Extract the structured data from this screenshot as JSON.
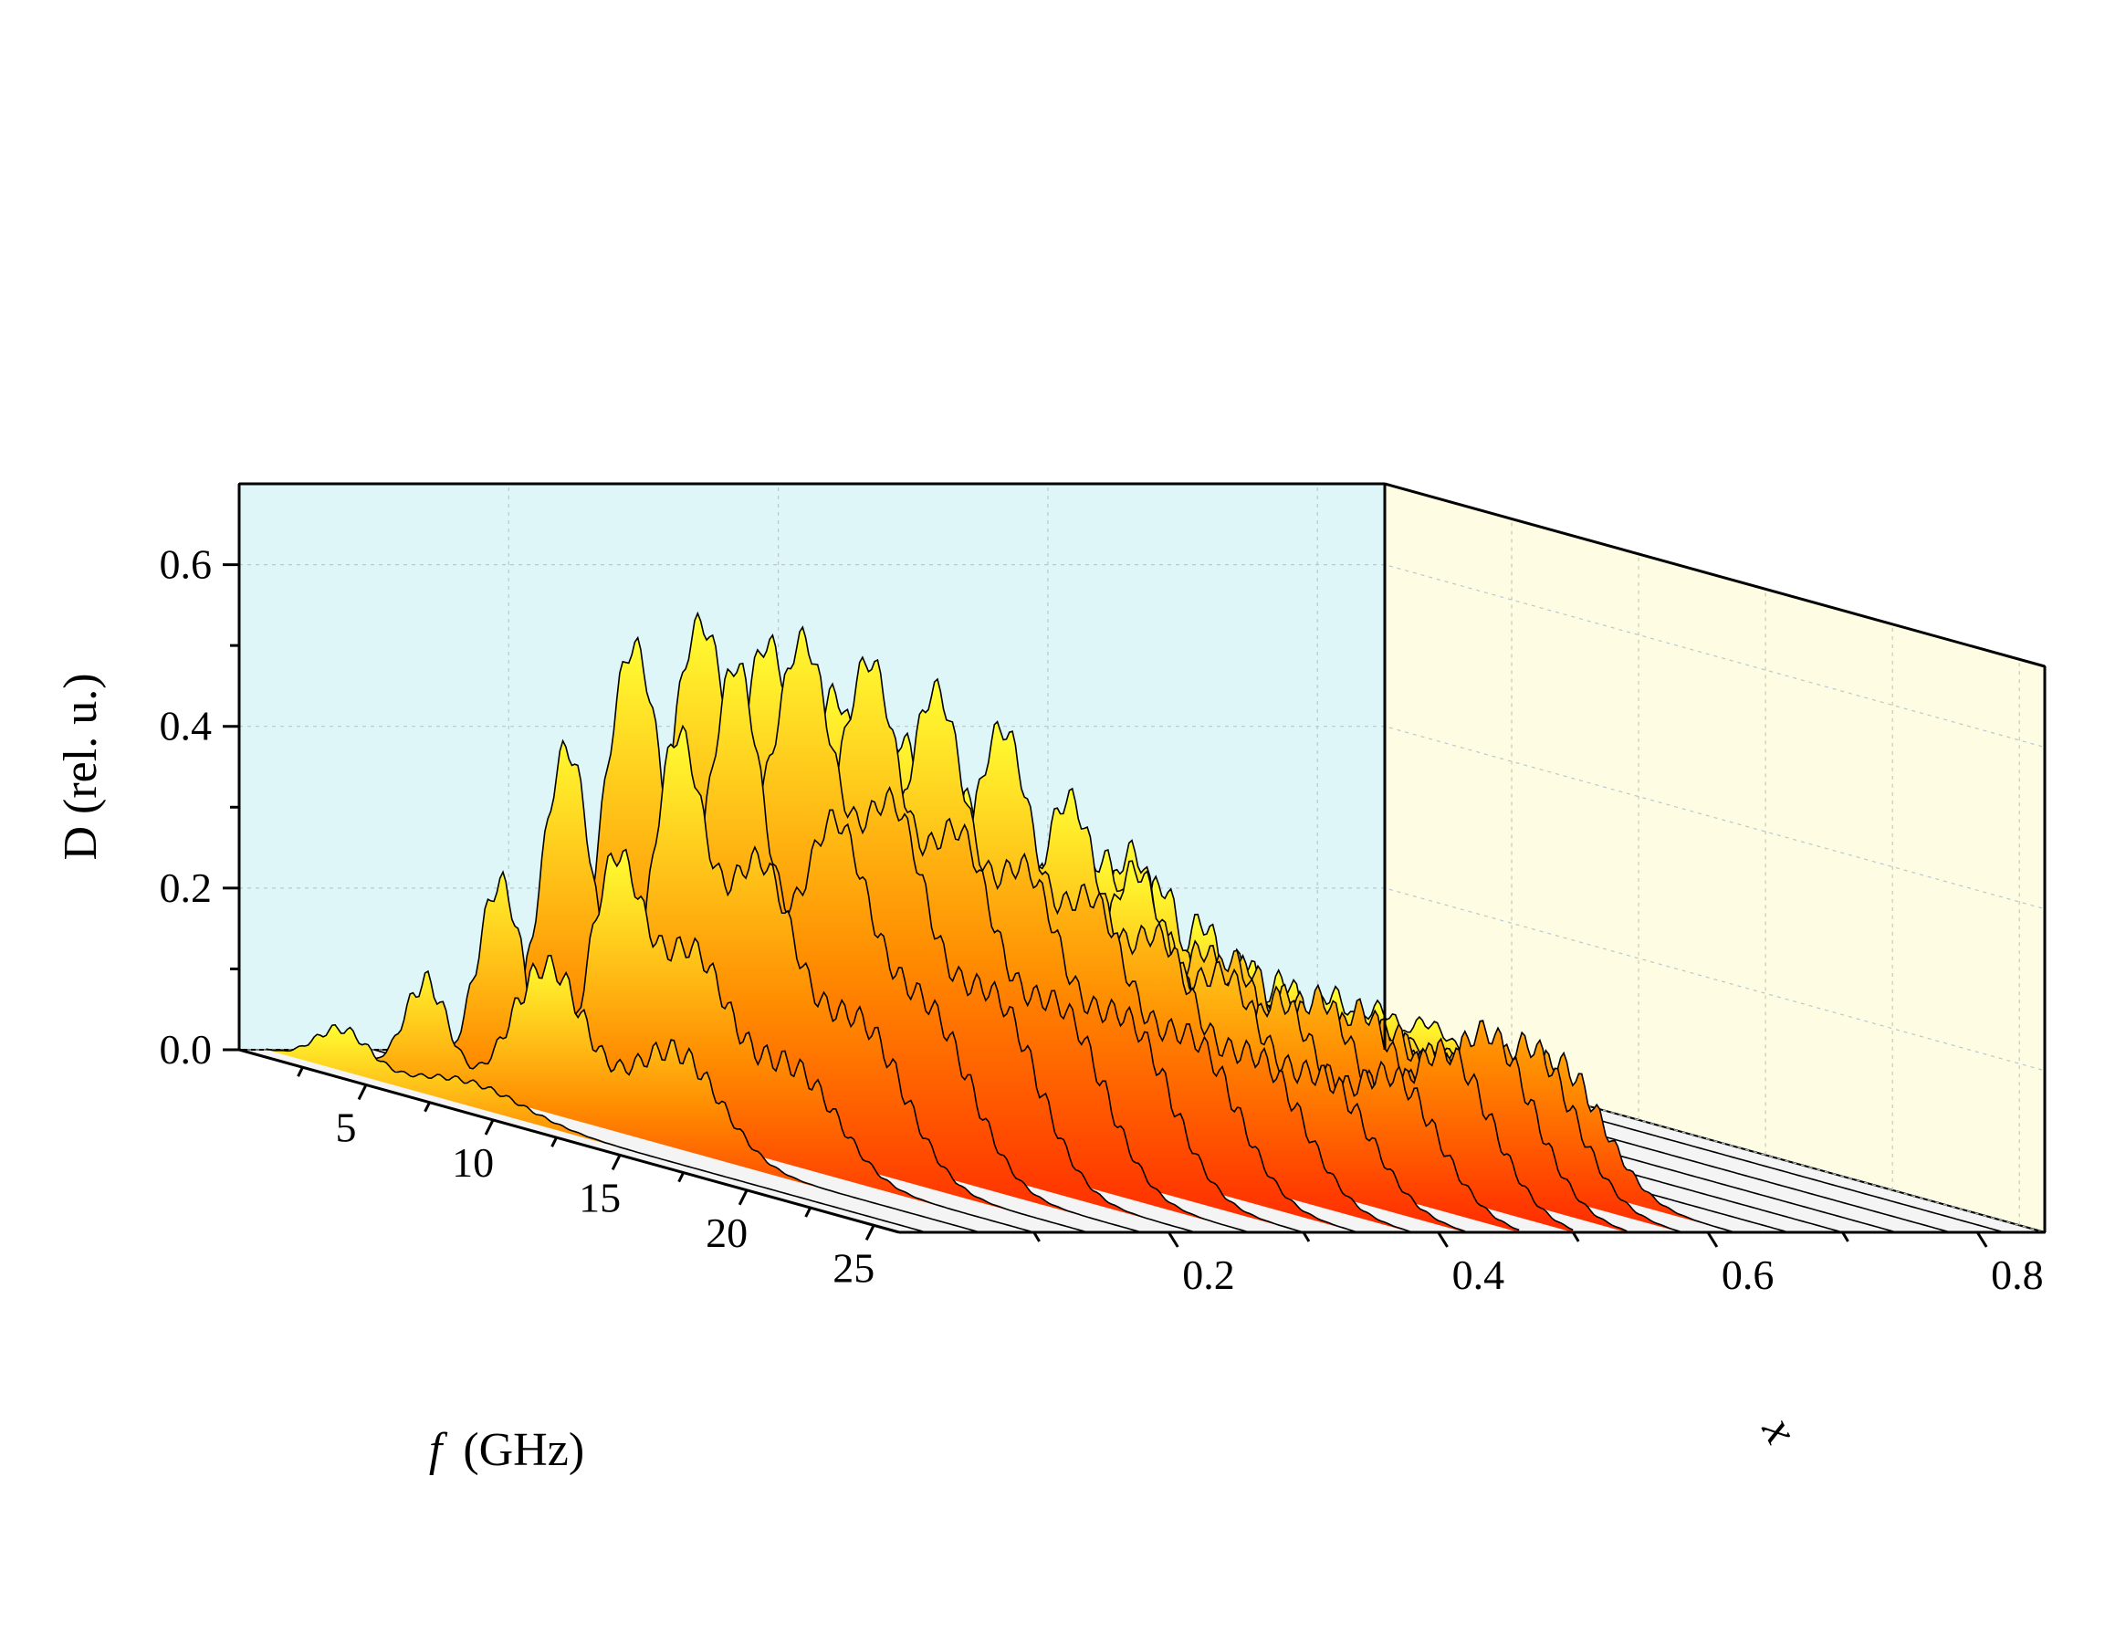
{
  "chart_data": {
    "type": "waterfall-3d",
    "title": "",
    "xlabel": "f",
    "xlabel_unit": "(GHz)",
    "ylabel": "x",
    "zlabel": "D (rel. u.)",
    "f_range": [
      0,
      26
    ],
    "x_range": [
      0.0,
      0.85
    ],
    "z_range": [
      0.0,
      0.7
    ],
    "f_ticks": [
      5,
      10,
      15,
      20,
      25
    ],
    "f_tick_labels": [
      "5",
      "10",
      "15",
      "20",
      "25"
    ],
    "x_ticks": [
      0.2,
      0.4,
      0.6,
      0.8
    ],
    "x_tick_labels": [
      "0.2",
      "0.4",
      "0.6",
      "0.8"
    ],
    "z_ticks": [
      0.0,
      0.2,
      0.4,
      0.6
    ],
    "z_tick_labels": [
      "0.0",
      "0.2",
      "0.4",
      "0.6"
    ],
    "grid": true,
    "colormap": {
      "low": "#ff2a00",
      "mid": "#ff8c00",
      "high": "#ffff33"
    },
    "wall_colors": {
      "back_left": "#def6f8",
      "back_right": "#fefde4"
    },
    "series": [
      {
        "x": 0.02,
        "peaks": [
          [
            3.0,
            0.05,
            1.5
          ],
          [
            8.0,
            0.03,
            3.0
          ]
        ]
      },
      {
        "x": 0.06,
        "peaks": [
          [
            4.2,
            0.12,
            1.2
          ],
          [
            9.0,
            0.18,
            2.0
          ],
          [
            14.0,
            0.12,
            2.5
          ]
        ]
      },
      {
        "x": 0.1,
        "peaks": [
          [
            5.0,
            0.25,
            1.3
          ],
          [
            9.5,
            0.3,
            1.5
          ],
          [
            12.5,
            0.22,
            2.0
          ],
          [
            16.5,
            0.12,
            2.5
          ]
        ]
      },
      {
        "x": 0.14,
        "peaks": [
          [
            5.5,
            0.42,
            1.5
          ],
          [
            9.8,
            0.45,
            1.5
          ],
          [
            13.0,
            0.33,
            2.0
          ],
          [
            17.0,
            0.18,
            2.5
          ]
        ]
      },
      {
        "x": 0.18,
        "peaks": [
          [
            6.0,
            0.55,
            1.8
          ],
          [
            10.0,
            0.55,
            1.6
          ],
          [
            13.8,
            0.38,
            2.0
          ],
          [
            17.5,
            0.2,
            2.5
          ]
        ]
      },
      {
        "x": 0.22,
        "peaks": [
          [
            6.5,
            0.58,
            2.0
          ],
          [
            10.5,
            0.57,
            1.8
          ],
          [
            14.0,
            0.4,
            2.0
          ],
          [
            18.0,
            0.22,
            2.5
          ]
        ]
      },
      {
        "x": 0.26,
        "peaks": [
          [
            7.0,
            0.56,
            2.0
          ],
          [
            11.0,
            0.55,
            1.8
          ],
          [
            14.5,
            0.37,
            2.0
          ],
          [
            18.5,
            0.21,
            2.5
          ]
        ]
      },
      {
        "x": 0.3,
        "peaks": [
          [
            7.5,
            0.5,
            2.0
          ],
          [
            11.5,
            0.52,
            1.8
          ],
          [
            15.0,
            0.33,
            2.0
          ],
          [
            19.0,
            0.2,
            2.5
          ]
        ]
      },
      {
        "x": 0.34,
        "peaks": [
          [
            8.0,
            0.45,
            2.0
          ],
          [
            12.0,
            0.48,
            1.8
          ],
          [
            15.5,
            0.3,
            2.0
          ],
          [
            19.5,
            0.18,
            2.5
          ]
        ]
      },
      {
        "x": 0.38,
        "peaks": [
          [
            8.5,
            0.38,
            2.0
          ],
          [
            12.5,
            0.4,
            1.8
          ],
          [
            16.0,
            0.26,
            2.0
          ],
          [
            20.0,
            0.16,
            2.5
          ]
        ]
      },
      {
        "x": 0.42,
        "peaks": [
          [
            9.0,
            0.3,
            2.0
          ],
          [
            13.0,
            0.32,
            1.8
          ],
          [
            16.5,
            0.22,
            2.0
          ],
          [
            20.5,
            0.14,
            2.5
          ]
        ]
      },
      {
        "x": 0.46,
        "peaks": [
          [
            8.0,
            0.28,
            1.8
          ],
          [
            12.0,
            0.24,
            1.8
          ],
          [
            16.5,
            0.2,
            2.0
          ],
          [
            21.0,
            0.15,
            2.5
          ]
        ]
      },
      {
        "x": 0.5,
        "peaks": [
          [
            7.5,
            0.3,
            1.8
          ],
          [
            11.5,
            0.22,
            1.8
          ],
          [
            16.0,
            0.2,
            2.0
          ],
          [
            21.0,
            0.18,
            2.5
          ]
        ]
      },
      {
        "x": 0.54,
        "peaks": [
          [
            6.5,
            0.3,
            1.8
          ],
          [
            10.5,
            0.2,
            1.8
          ],
          [
            15.5,
            0.18,
            2.0
          ],
          [
            20.5,
            0.2,
            2.5
          ]
        ]
      },
      {
        "x": 0.58,
        "peaks": [
          [
            5.5,
            0.25,
            1.5
          ],
          [
            9.0,
            0.18,
            1.6
          ],
          [
            14.5,
            0.15,
            2.0
          ],
          [
            20.0,
            0.18,
            2.5
          ]
        ]
      },
      {
        "x": 0.62,
        "peaks": [
          [
            5.0,
            0.2,
            1.5
          ],
          [
            8.5,
            0.14,
            1.6
          ],
          [
            13.0,
            0.12,
            2.0
          ],
          [
            19.0,
            0.15,
            2.5
          ]
        ]
      },
      {
        "x": 0.66,
        "peaks": [
          [
            4.5,
            0.15,
            1.4
          ],
          [
            8.0,
            0.1,
            1.6
          ],
          [
            12.0,
            0.1,
            2.0
          ]
        ]
      },
      {
        "x": 0.7,
        "peaks": [
          [
            4.0,
            0.12,
            1.4
          ],
          [
            7.5,
            0.08,
            1.6
          ],
          [
            11.0,
            0.08,
            2.0
          ]
        ]
      },
      {
        "x": 0.74,
        "peaks": [
          [
            3.8,
            0.1,
            1.4
          ],
          [
            7.0,
            0.06,
            1.6
          ]
        ]
      },
      {
        "x": 0.78,
        "peaks": [
          [
            3.5,
            0.08,
            1.4
          ],
          [
            6.5,
            0.05,
            1.6
          ]
        ]
      },
      {
        "x": 0.82,
        "peaks": [
          [
            3.2,
            0.06,
            1.4
          ],
          [
            6.0,
            0.04,
            1.6
          ]
        ]
      }
    ]
  }
}
